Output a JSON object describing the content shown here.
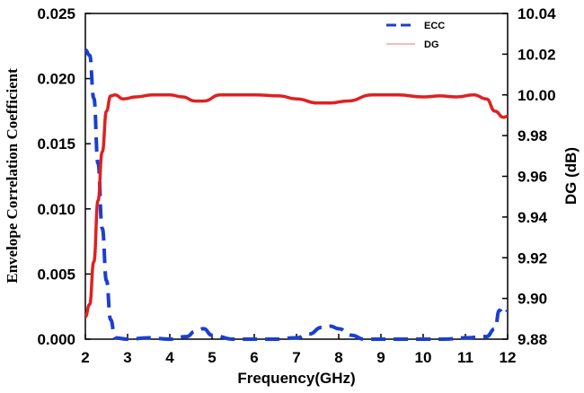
{
  "chart_data": {
    "type": "line",
    "xlabel": "Frequency(GHz)",
    "ylabel_left": "Envelope Correlation Coefficient",
    "ylabel_right": "DG (dB)",
    "xlim": [
      2,
      12
    ],
    "ylim_left": [
      0,
      0.025
    ],
    "ylim_right": [
      9.88,
      10.04
    ],
    "x_ticks": [
      "2",
      "3",
      "4",
      "5",
      "6",
      "7",
      "8",
      "9",
      "10",
      "11",
      "12"
    ],
    "y_left_ticks": [
      "0.000",
      "0.005",
      "0.010",
      "0.015",
      "0.020",
      "0.025"
    ],
    "y_right_ticks": [
      "9.88",
      "9.90",
      "9.92",
      "9.94",
      "9.96",
      "9.98",
      "10.00",
      "10.02",
      "10.04"
    ],
    "grid": false,
    "legend_position": "top-right",
    "series": [
      {
        "name": "ECC",
        "axis": "left",
        "color": "#1a3fd1",
        "style": "dashed",
        "x": [
          2.0,
          2.1,
          2.2,
          2.3,
          2.4,
          2.5,
          2.6,
          2.7,
          3.0,
          3.5,
          4.0,
          4.4,
          4.6,
          4.8,
          5.0,
          5.5,
          6.0,
          6.5,
          7.0,
          7.3,
          7.6,
          7.8,
          8.0,
          8.3,
          8.6,
          9.0,
          9.5,
          10.0,
          10.5,
          11.0,
          11.5,
          11.7,
          11.8,
          11.9,
          12.0
        ],
        "values": [
          0.0222,
          0.0218,
          0.0185,
          0.0135,
          0.0085,
          0.0045,
          0.0015,
          0.0001,
          0.0,
          0.0001,
          0.0,
          0.0002,
          0.0006,
          0.0008,
          0.0003,
          0.0,
          0.0,
          0.0,
          0.0001,
          0.0004,
          0.0009,
          0.001,
          0.0008,
          0.0003,
          0.0,
          0.0,
          0.0,
          0.0,
          0.0,
          0.0001,
          0.0002,
          0.0008,
          0.0022,
          0.0025,
          0.0022
        ]
      },
      {
        "name": "DG",
        "axis": "right",
        "color": "#e02020",
        "style": "solid",
        "x": [
          2.0,
          2.1,
          2.2,
          2.3,
          2.4,
          2.5,
          2.6,
          2.7,
          2.9,
          3.2,
          3.6,
          4.0,
          4.3,
          4.6,
          4.8,
          5.2,
          6.0,
          6.6,
          7.0,
          7.5,
          7.8,
          8.2,
          8.8,
          9.4,
          10.0,
          10.4,
          10.8,
          11.2,
          11.5,
          11.7,
          11.9,
          12.0
        ],
        "values": [
          9.891,
          9.897,
          9.918,
          9.948,
          9.972,
          9.992,
          9.9995,
          10.0,
          9.998,
          9.999,
          10.0,
          10.0,
          9.999,
          9.997,
          9.997,
          10.0,
          10.0,
          9.9995,
          9.998,
          9.996,
          9.996,
          9.997,
          10.0,
          10.0,
          9.999,
          9.9995,
          9.999,
          10.0,
          9.998,
          9.992,
          9.989,
          9.9895
        ]
      }
    ]
  }
}
